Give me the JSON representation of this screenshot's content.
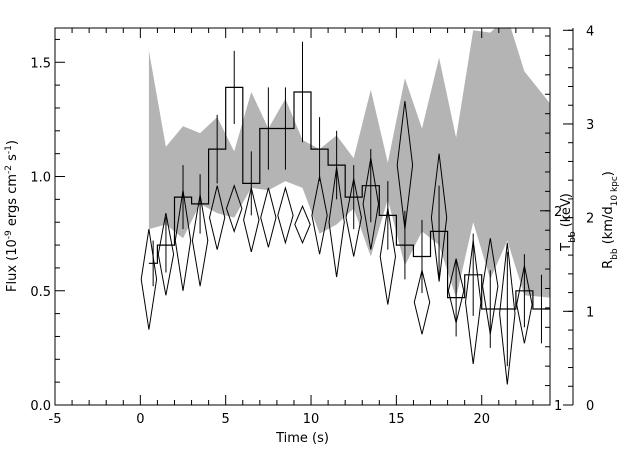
{
  "chart_data": {
    "type": "line",
    "xlabel": "Time (s)",
    "ylabel": "Flux (10",
    "ylabel_parts": [
      "Flux (10",
      "-9",
      " ergs cm",
      "-2",
      " s",
      "-1",
      ")"
    ],
    "right_label_T": "T",
    "right_label_T_sub": "bb",
    "right_label_T_unit": " (keV)",
    "right_label_R": "R",
    "right_label_R_sub": "bb",
    "right_label_R_unit_a": " (km/d",
    "right_label_R_unit_sub": "10 kpc",
    "right_label_R_unit_b": ")",
    "xlim": [
      -5,
      24
    ],
    "ylim": [
      0,
      1.65
    ],
    "x_ticks": [
      "-5",
      "0",
      "5",
      "10",
      "15",
      "20"
    ],
    "x_tick_values": [
      -5,
      0,
      5,
      10,
      15,
      20
    ],
    "y_ticks": [
      "0.0",
      "0.5",
      "1.0",
      "1.5"
    ],
    "y_tick_values": [
      0.0,
      0.5,
      1.0,
      1.5
    ],
    "right_T_ticks": [
      "1",
      "2"
    ],
    "right_T_tick_values": [
      0.0,
      0.85
    ],
    "right_R_ticks": [
      "0",
      "1",
      "2",
      "3",
      "4"
    ],
    "right_R_tick_values": [
      0.0,
      0.41,
      0.82,
      1.23,
      1.64
    ],
    "flux_histogram": {
      "name": "Flux",
      "bin_edges": [
        0.5,
        1.0,
        2.0,
        3.0,
        4.0,
        5.0,
        6.0,
        7.0,
        8.0,
        9.0,
        10.0,
        11.0,
        12.0,
        13.0,
        14.0,
        15.0,
        16.0,
        17.0,
        18.0,
        19.0,
        20.0,
        21.0,
        22.0,
        23.0,
        24.0
      ],
      "values": [
        0.62,
        0.7,
        0.91,
        0.88,
        1.12,
        1.39,
        0.97,
        1.21,
        1.21,
        1.37,
        1.12,
        1.05,
        0.91,
        0.96,
        0.83,
        0.7,
        0.65,
        0.76,
        0.47,
        0.57,
        0.42,
        0.42,
        0.5,
        0.42
      ],
      "errors": [
        0.1,
        0.12,
        0.14,
        0.13,
        0.15,
        0.16,
        0.14,
        0.18,
        0.18,
        0.22,
        0.14,
        0.15,
        0.14,
        0.16,
        0.15,
        0.15,
        0.16,
        0.2,
        0.17,
        0.18,
        0.17,
        0.25,
        0.16,
        0.15
      ]
    },
    "temperature_diamonds": {
      "name": "Tbb",
      "x": [
        0.5,
        1.5,
        2.5,
        3.5,
        4.5,
        5.5,
        6.5,
        7.5,
        8.5,
        9.5,
        10.5,
        11.5,
        12.5,
        13.5,
        14.5,
        15.5,
        16.5,
        17.5,
        18.5,
        19.5,
        20.5,
        21.5,
        22.5
      ],
      "y": [
        0.55,
        0.66,
        0.72,
        0.72,
        0.82,
        0.86,
        0.81,
        0.82,
        0.83,
        0.79,
        0.83,
        0.8,
        0.82,
        0.88,
        0.65,
        1.05,
        0.45,
        0.82,
        0.5,
        0.45,
        0.52,
        0.4,
        0.44
      ],
      "half_height": [
        0.22,
        0.18,
        0.22,
        0.2,
        0.14,
        0.1,
        0.14,
        0.13,
        0.12,
        0.08,
        0.17,
        0.24,
        0.17,
        0.2,
        0.21,
        0.28,
        0.14,
        0.28,
        0.14,
        0.27,
        0.21,
        0.31,
        0.17
      ]
    },
    "radius_band": {
      "name": "Rbb",
      "x": [
        0.5,
        1.5,
        2.5,
        3.5,
        4.5,
        5.5,
        6.5,
        7.5,
        8.5,
        9.5,
        10.5,
        11.5,
        12.5,
        13.5,
        14.5,
        15.5,
        16.5,
        17.5,
        18.5,
        19.5,
        20.5,
        21.5,
        22.5,
        24.0
      ],
      "upper": [
        1.55,
        1.13,
        1.22,
        1.19,
        1.26,
        1.11,
        1.37,
        1.21,
        1.34,
        1.16,
        1.12,
        1.18,
        1.08,
        1.38,
        1.06,
        1.43,
        1.21,
        1.52,
        1.17,
        1.64,
        1.63,
        1.7,
        1.46,
        1.32
      ],
      "lower": [
        0.77,
        0.79,
        0.73,
        0.88,
        0.84,
        0.82,
        0.95,
        0.94,
        0.98,
        0.95,
        0.75,
        0.79,
        0.86,
        0.65,
        0.9,
        0.61,
        0.76,
        0.7,
        0.47,
        0.8,
        0.55,
        0.72,
        0.48,
        0.47
      ]
    }
  }
}
